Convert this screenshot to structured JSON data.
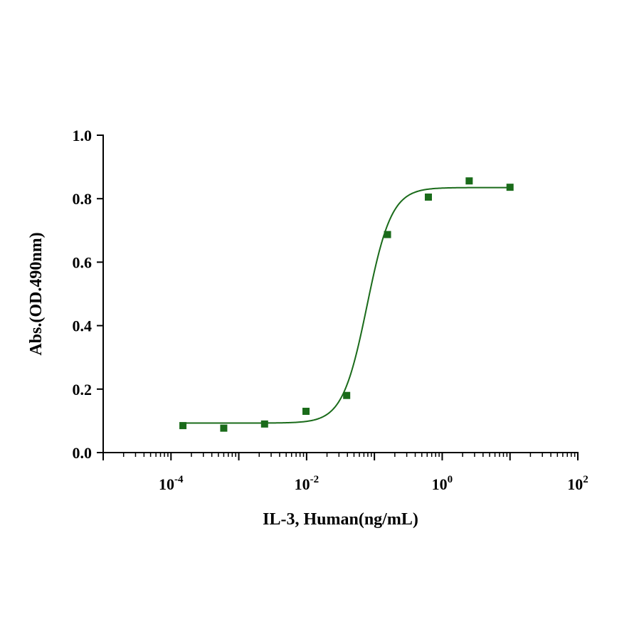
{
  "chart_data": {
    "type": "scatter",
    "title": "",
    "xlabel": "IL-3, Human(ng/mL)",
    "ylabel": "Abs.(OD.490nm)",
    "x_scale": "log10",
    "xlim": [
      1e-05,
      100
    ],
    "ylim": [
      0,
      1.0
    ],
    "grid": false,
    "legend": "none",
    "x_ticks": [
      {
        "value": 0.0001,
        "base": "10",
        "exp": "-4"
      },
      {
        "value": 0.01,
        "base": "10",
        "exp": "-2"
      },
      {
        "value": 1,
        "base": "10",
        "exp": "0"
      },
      {
        "value": 100,
        "base": "10",
        "exp": "2"
      }
    ],
    "y_ticks": [
      {
        "value": 0.0,
        "label": "0.0"
      },
      {
        "value": 0.2,
        "label": "0.2"
      },
      {
        "value": 0.4,
        "label": "0.4"
      },
      {
        "value": 0.6,
        "label": "0.6"
      },
      {
        "value": 0.8,
        "label": "0.8"
      },
      {
        "value": 1.0,
        "label": "1.0"
      }
    ],
    "series": [
      {
        "color": "#1a6b1a",
        "marker": "square",
        "points": [
          {
            "x": 0.00015,
            "y": 0.085
          },
          {
            "x": 0.0006,
            "y": 0.077
          },
          {
            "x": 0.0024,
            "y": 0.09
          },
          {
            "x": 0.0098,
            "y": 0.13
          },
          {
            "x": 0.039,
            "y": 0.18
          },
          {
            "x": 0.156,
            "y": 0.687
          },
          {
            "x": 0.625,
            "y": 0.805
          },
          {
            "x": 2.5,
            "y": 0.856
          },
          {
            "x": 10,
            "y": 0.836
          }
        ],
        "fit": {
          "model": "4PL",
          "bottom": 0.093,
          "top": 0.835,
          "ec50": 0.078,
          "hill": 2.4
        }
      }
    ]
  }
}
